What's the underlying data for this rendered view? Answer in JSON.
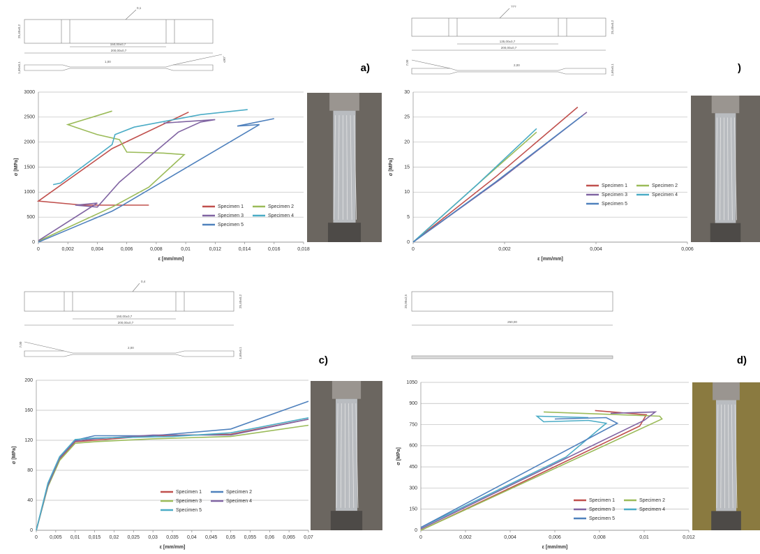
{
  "chart_data": [
    {
      "type": "line",
      "label": "a)",
      "x_label": "ε [mm/mm]",
      "y_label": "σ [MPa]",
      "xlim": [
        0,
        0.018
      ],
      "xticks": [
        0,
        {
          "value": 0.002,
          "label": "0,002"
        },
        {
          "value": 0.004,
          "label": "0,004"
        },
        {
          "value": 0.006,
          "label": "0,006"
        },
        {
          "value": 0.008,
          "label": "0,008"
        },
        {
          "value": 0.01,
          "label": "0,01"
        },
        {
          "value": 0.012,
          "label": "0,012"
        },
        {
          "value": 0.014,
          "label": "0,014"
        },
        {
          "value": 0.016,
          "label": "0,016"
        },
        {
          "value": 0.018,
          "label": "0,018"
        }
      ],
      "ylim": [
        0,
        3000
      ],
      "yticks": [
        0,
        500,
        1000,
        1500,
        2000,
        2500,
        3000
      ],
      "grid": true,
      "series": [
        {
          "name": "Specimen 1",
          "color": "#c0504d",
          "x": [
            0.0075,
            0.003,
            0.0,
            0.005,
            0.0102
          ],
          "values": [
            740,
            740,
            820,
            1870,
            2600
          ]
        },
        {
          "name": "Specimen 2",
          "color": "#9bbb59",
          "x": [
            0.005,
            0.002,
            0.0025,
            0.004,
            0.0055,
            0.006,
            0.0085,
            0.0099,
            0.0075,
            0.005,
            0.0
          ],
          "values": [
            2620,
            2350,
            2300,
            2150,
            2050,
            1800,
            1780,
            1750,
            1100,
            700,
            20
          ]
        },
        {
          "name": "Specimen 3",
          "color": "#8064a2",
          "x": [
            0.0,
            0.004,
            0.0025,
            0.004,
            0.0055,
            0.0095,
            0.011,
            0.012,
            0.0085
          ],
          "values": [
            30,
            780,
            740,
            700,
            1200,
            2200,
            2400,
            2450,
            2380
          ]
        },
        {
          "name": "Specimen 4",
          "color": "#4bacc6",
          "x": [
            0.001,
            0.0015,
            0.005,
            0.0052,
            0.0065,
            0.011,
            0.0142
          ],
          "values": [
            1150,
            1180,
            1950,
            2150,
            2300,
            2550,
            2650
          ]
        },
        {
          "name": "Specimen 5",
          "color": "#4f81bd",
          "x": [
            0.0,
            0.005,
            0.0055,
            0.015,
            0.0135,
            0.016
          ],
          "values": [
            0,
            620,
            700,
            2350,
            2320,
            2470
          ]
        }
      ]
    },
    {
      "type": "line",
      "label": ")",
      "x_label": "ε [mm/mm]",
      "y_label": "σ [MPa]",
      "xlim": [
        0,
        0.006
      ],
      "xticks": [
        0,
        {
          "value": 0.002,
          "label": "0,002"
        },
        {
          "value": 0.004,
          "label": "0,004"
        },
        {
          "value": 0.006,
          "label": "0,006"
        }
      ],
      "ylim": [
        0,
        30
      ],
      "yticks": [
        0,
        5,
        10,
        15,
        20,
        25,
        30
      ],
      "grid": true,
      "series": [
        {
          "name": "Specimen 1",
          "color": "#c0504d",
          "x": [
            0.0,
            0.0018,
            0.0036
          ],
          "values": [
            0,
            13,
            27
          ]
        },
        {
          "name": "Specimen 2",
          "color": "#9bbb59",
          "x": [
            0.0,
            0.0014,
            0.0027
          ],
          "values": [
            0,
            11.5,
            22
          ]
        },
        {
          "name": "Specimen 3",
          "color": "#8064a2",
          "x": [
            0.0,
            0.0019,
            0.0038
          ],
          "values": [
            0,
            12.5,
            26
          ]
        },
        {
          "name": "Specimen 4",
          "color": "#4bacc6",
          "x": [
            0.0,
            0.0014,
            0.0027
          ],
          "values": [
            0,
            11.5,
            22.7
          ]
        },
        {
          "name": "Specimen 5",
          "color": "#4f81bd",
          "x": [
            0.0,
            0.0018,
            0.0037
          ],
          "values": [
            0,
            12,
            25.3
          ]
        }
      ]
    },
    {
      "type": "line",
      "label": "c)",
      "x_label": "ε [mm/mm]",
      "y_label": "σ [MPa]",
      "xlim": [
        0,
        0.07
      ],
      "xticks": [
        0,
        {
          "value": 0.005,
          "label": "0,005"
        },
        {
          "value": 0.01,
          "label": "0,01"
        },
        {
          "value": 0.015,
          "label": "0,015"
        },
        {
          "value": 0.02,
          "label": "0,02"
        },
        {
          "value": 0.025,
          "label": "0,025"
        },
        {
          "value": 0.03,
          "label": "0,03"
        },
        {
          "value": 0.035,
          "label": "0,035"
        },
        {
          "value": 0.04,
          "label": "0,04"
        },
        {
          "value": 0.045,
          "label": "0,045"
        },
        {
          "value": 0.05,
          "label": "0,05"
        },
        {
          "value": 0.055,
          "label": "0,055"
        },
        {
          "value": 0.06,
          "label": "0,06"
        },
        {
          "value": 0.065,
          "label": "0,065"
        },
        {
          "value": 0.07,
          "label": "0,07"
        }
      ],
      "ylim": [
        0,
        200
      ],
      "yticks": [
        0,
        40,
        80,
        120,
        160,
        200
      ],
      "grid": true,
      "series": [
        {
          "name": "Specimen 1",
          "color": "#c0504d",
          "x": [
            0.0,
            0.003,
            0.006,
            0.01,
            0.015,
            0.03,
            0.05,
            0.07
          ],
          "values": [
            0,
            60,
            95,
            118,
            120,
            126,
            128,
            148
          ]
        },
        {
          "name": "Specimen 2",
          "color": "#4f81bd",
          "x": [
            0.0,
            0.003,
            0.006,
            0.01,
            0.015,
            0.03,
            0.05,
            0.07
          ],
          "values": [
            0,
            62,
            97,
            120,
            126,
            126,
            135,
            172
          ]
        },
        {
          "name": "Specimen 3",
          "color": "#9bbb59",
          "x": [
            0.0,
            0.003,
            0.006,
            0.01,
            0.015,
            0.03,
            0.05,
            0.07
          ],
          "values": [
            0,
            58,
            93,
            116,
            118,
            122,
            125,
            140
          ]
        },
        {
          "name": "Specimen 4",
          "color": "#8064a2",
          "x": [
            0.0,
            0.003,
            0.006,
            0.01,
            0.015,
            0.03,
            0.05,
            0.07
          ],
          "values": [
            0,
            60,
            96,
            119,
            122,
            127,
            127,
            148
          ]
        },
        {
          "name": "Specimen 5",
          "color": "#4bacc6",
          "x": [
            0.0,
            0.003,
            0.006,
            0.01,
            0.015,
            0.035,
            0.05,
            0.07
          ],
          "values": [
            0,
            63,
            98,
            121,
            123,
            125,
            130,
            150
          ]
        }
      ]
    },
    {
      "type": "line",
      "label": "d)",
      "x_label": "ε [mm/mm]",
      "y_label": "σ [MPa]",
      "xlim": [
        0,
        0.012
      ],
      "xticks": [
        0,
        {
          "value": 0.002,
          "label": "0,002"
        },
        {
          "value": 0.004,
          "label": "0,004"
        },
        {
          "value": 0.006,
          "label": "0,006"
        },
        {
          "value": 0.008,
          "label": "0,008"
        },
        {
          "value": 0.01,
          "label": "0,01"
        },
        {
          "value": 0.012,
          "label": "0,012"
        }
      ],
      "ylim": [
        0,
        1050
      ],
      "yticks": [
        0,
        150,
        300,
        450,
        600,
        750,
        900,
        1050
      ],
      "grid": true,
      "series": [
        {
          "name": "Specimen 1",
          "color": "#c0504d",
          "x": [
            0.0,
            0.004,
            0.0098,
            0.0101,
            0.0078
          ],
          "values": [
            0,
            300,
            740,
            820,
            850
          ]
        },
        {
          "name": "Specimen 2",
          "color": "#9bbb59",
          "x": [
            0.0,
            0.0108,
            0.0107,
            0.0055
          ],
          "values": [
            0,
            790,
            810,
            840
          ]
        },
        {
          "name": "Specimen 3",
          "color": "#8064a2",
          "x": [
            0.0,
            0.01,
            0.0105,
            0.0085
          ],
          "values": [
            10,
            780,
            840,
            830
          ]
        },
        {
          "name": "Specimen 4",
          "color": "#4bacc6",
          "x": [
            0.0,
            0.0065,
            0.0083,
            0.0075,
            0.0055,
            0.0052,
            0.0075
          ],
          "values": [
            20,
            520,
            760,
            780,
            770,
            810,
            800
          ]
        },
        {
          "name": "Specimen 5",
          "color": "#4f81bd",
          "x": [
            0.0,
            0.0088,
            0.0083,
            0.006
          ],
          "values": [
            20,
            760,
            800,
            790
          ]
        }
      ]
    }
  ],
  "drawings": {
    "a": {
      "top": "0,1",
      "width": "25,40±0,2",
      "gauge": "150,00±0,7",
      "length": "200,00±0,7",
      "thickness": "1,00",
      "tab": "1,60±0,1",
      "angle": "≤90°"
    },
    "b": {
      "top": "???",
      "width": "25,40±0,2",
      "gauge": "135,00±0,7",
      "length": "200,00±0,7",
      "thickness": "2,00",
      "tab": "1,60±0,1",
      "angle": "7,00"
    },
    "c": {
      "top": "0,4",
      "width": "25,40±0,2",
      "gauge": "150,00±0,7",
      "length": "200,00±0,7",
      "thickness": "2,00",
      "tab": "1,60±0,1",
      "angle": "7,00"
    },
    "d": {
      "width": "25,00±2,5",
      "length": "250,00"
    }
  }
}
